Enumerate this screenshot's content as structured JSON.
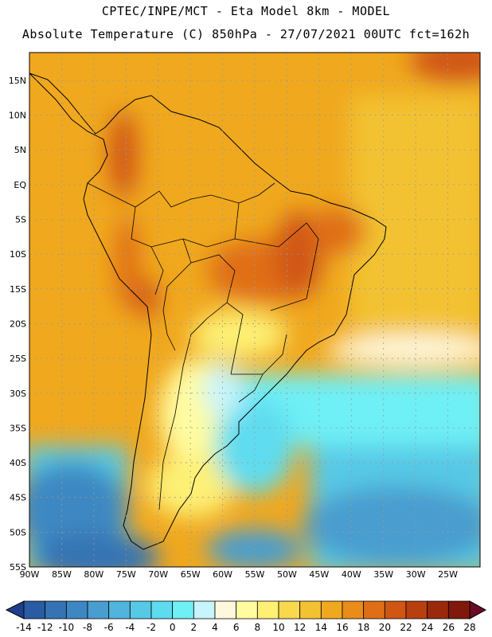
{
  "title_line1": "CPTEC/INPE/MCT -  Eta Model 8km - MODEL",
  "title_line2": "Absolute Temperature (C) 850hPa - 27/07/2021 00UTC fct=162h",
  "colors": {
    "background": "#ffffff",
    "coast": "#000000",
    "grid": "#9a9a9a",
    "warm_orange": "#f0a01e",
    "hot": "#d9641a"
  },
  "axes": {
    "lat_labels": [
      "15N",
      "10N",
      "5N",
      "EQ",
      "5S",
      "10S",
      "15S",
      "20S",
      "25S",
      "30S",
      "35S",
      "40S",
      "45S",
      "50S",
      "55S"
    ],
    "lat_values": [
      15,
      10,
      5,
      0,
      -5,
      -10,
      -15,
      -20,
      -25,
      -30,
      -35,
      -40,
      -45,
      -50,
      -55
    ],
    "lon_labels": [
      "90W",
      "85W",
      "80W",
      "75W",
      "70W",
      "65W",
      "60W",
      "55W",
      "50W",
      "45W",
      "40W",
      "35W",
      "30W",
      "25W"
    ],
    "lon_values": [
      -90,
      -85,
      -80,
      -75,
      -70,
      -65,
      -60,
      -55,
      -50,
      -45,
      -40,
      -35,
      -30,
      -25
    ],
    "lon_range": [
      -90,
      -20
    ],
    "lat_range": [
      -55,
      19
    ]
  },
  "colorbar": {
    "labels": [
      "-14",
      "-12",
      "-10",
      "-8",
      "-6",
      "-4",
      "-2",
      "0",
      "2",
      "4",
      "6",
      "8",
      "10",
      "12",
      "14",
      "16",
      "18",
      "20",
      "22",
      "24",
      "26",
      "28"
    ],
    "colors": [
      "#1f3e8c",
      "#2a5ca4",
      "#3573b4",
      "#3d88c2",
      "#4a9dcf",
      "#52b4dc",
      "#56c9e6",
      "#5edcef",
      "#6ef0f6",
      "#c8f4fb",
      "#fff8dc",
      "#fffca0",
      "#fdf074",
      "#f8d84c",
      "#f3c232",
      "#f0a81e",
      "#ea8c1a",
      "#e06e16",
      "#d05614",
      "#b8400f",
      "#9a2a0c",
      "#80180c",
      "#6a0a26"
    ],
    "ticks": [
      -14,
      -12,
      -10,
      -8,
      -6,
      -4,
      -2,
      0,
      2,
      4,
      6,
      8,
      10,
      12,
      14,
      16,
      18,
      20,
      22,
      24,
      26,
      28
    ]
  }
}
